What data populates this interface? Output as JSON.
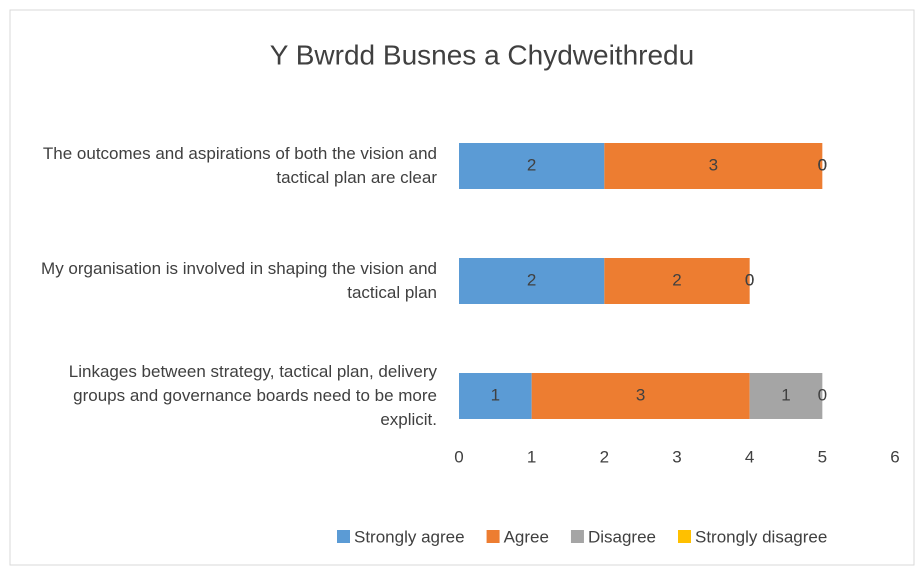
{
  "chart_data": {
    "type": "stacked_bar_horizontal",
    "title": "Y Bwrdd Busnes a Chydweithredu",
    "categories": [
      "The outcomes and aspirations of both the vision and tactical plan are clear",
      "My organisation is involved in shaping the vision and tactical plan",
      "Linkages between strategy, tactical plan, delivery groups and governance boards need to be more explicit."
    ],
    "series": [
      {
        "name": "Strongly agree",
        "color": "#5b9bd5",
        "values": [
          2,
          2,
          1
        ]
      },
      {
        "name": "Agree",
        "color": "#ed7d31",
        "values": [
          3,
          2,
          3
        ]
      },
      {
        "name": "Disagree",
        "color": "#a5a5a5",
        "values": [
          0,
          0,
          1
        ]
      },
      {
        "name": "Strongly disagree",
        "color": "#ffc000",
        "values": [
          0,
          0,
          0
        ]
      }
    ],
    "xlim": [
      0,
      6
    ],
    "xticks": [
      0,
      1,
      2,
      3,
      4,
      5,
      6
    ],
    "grid": false,
    "legend": "bottom"
  }
}
